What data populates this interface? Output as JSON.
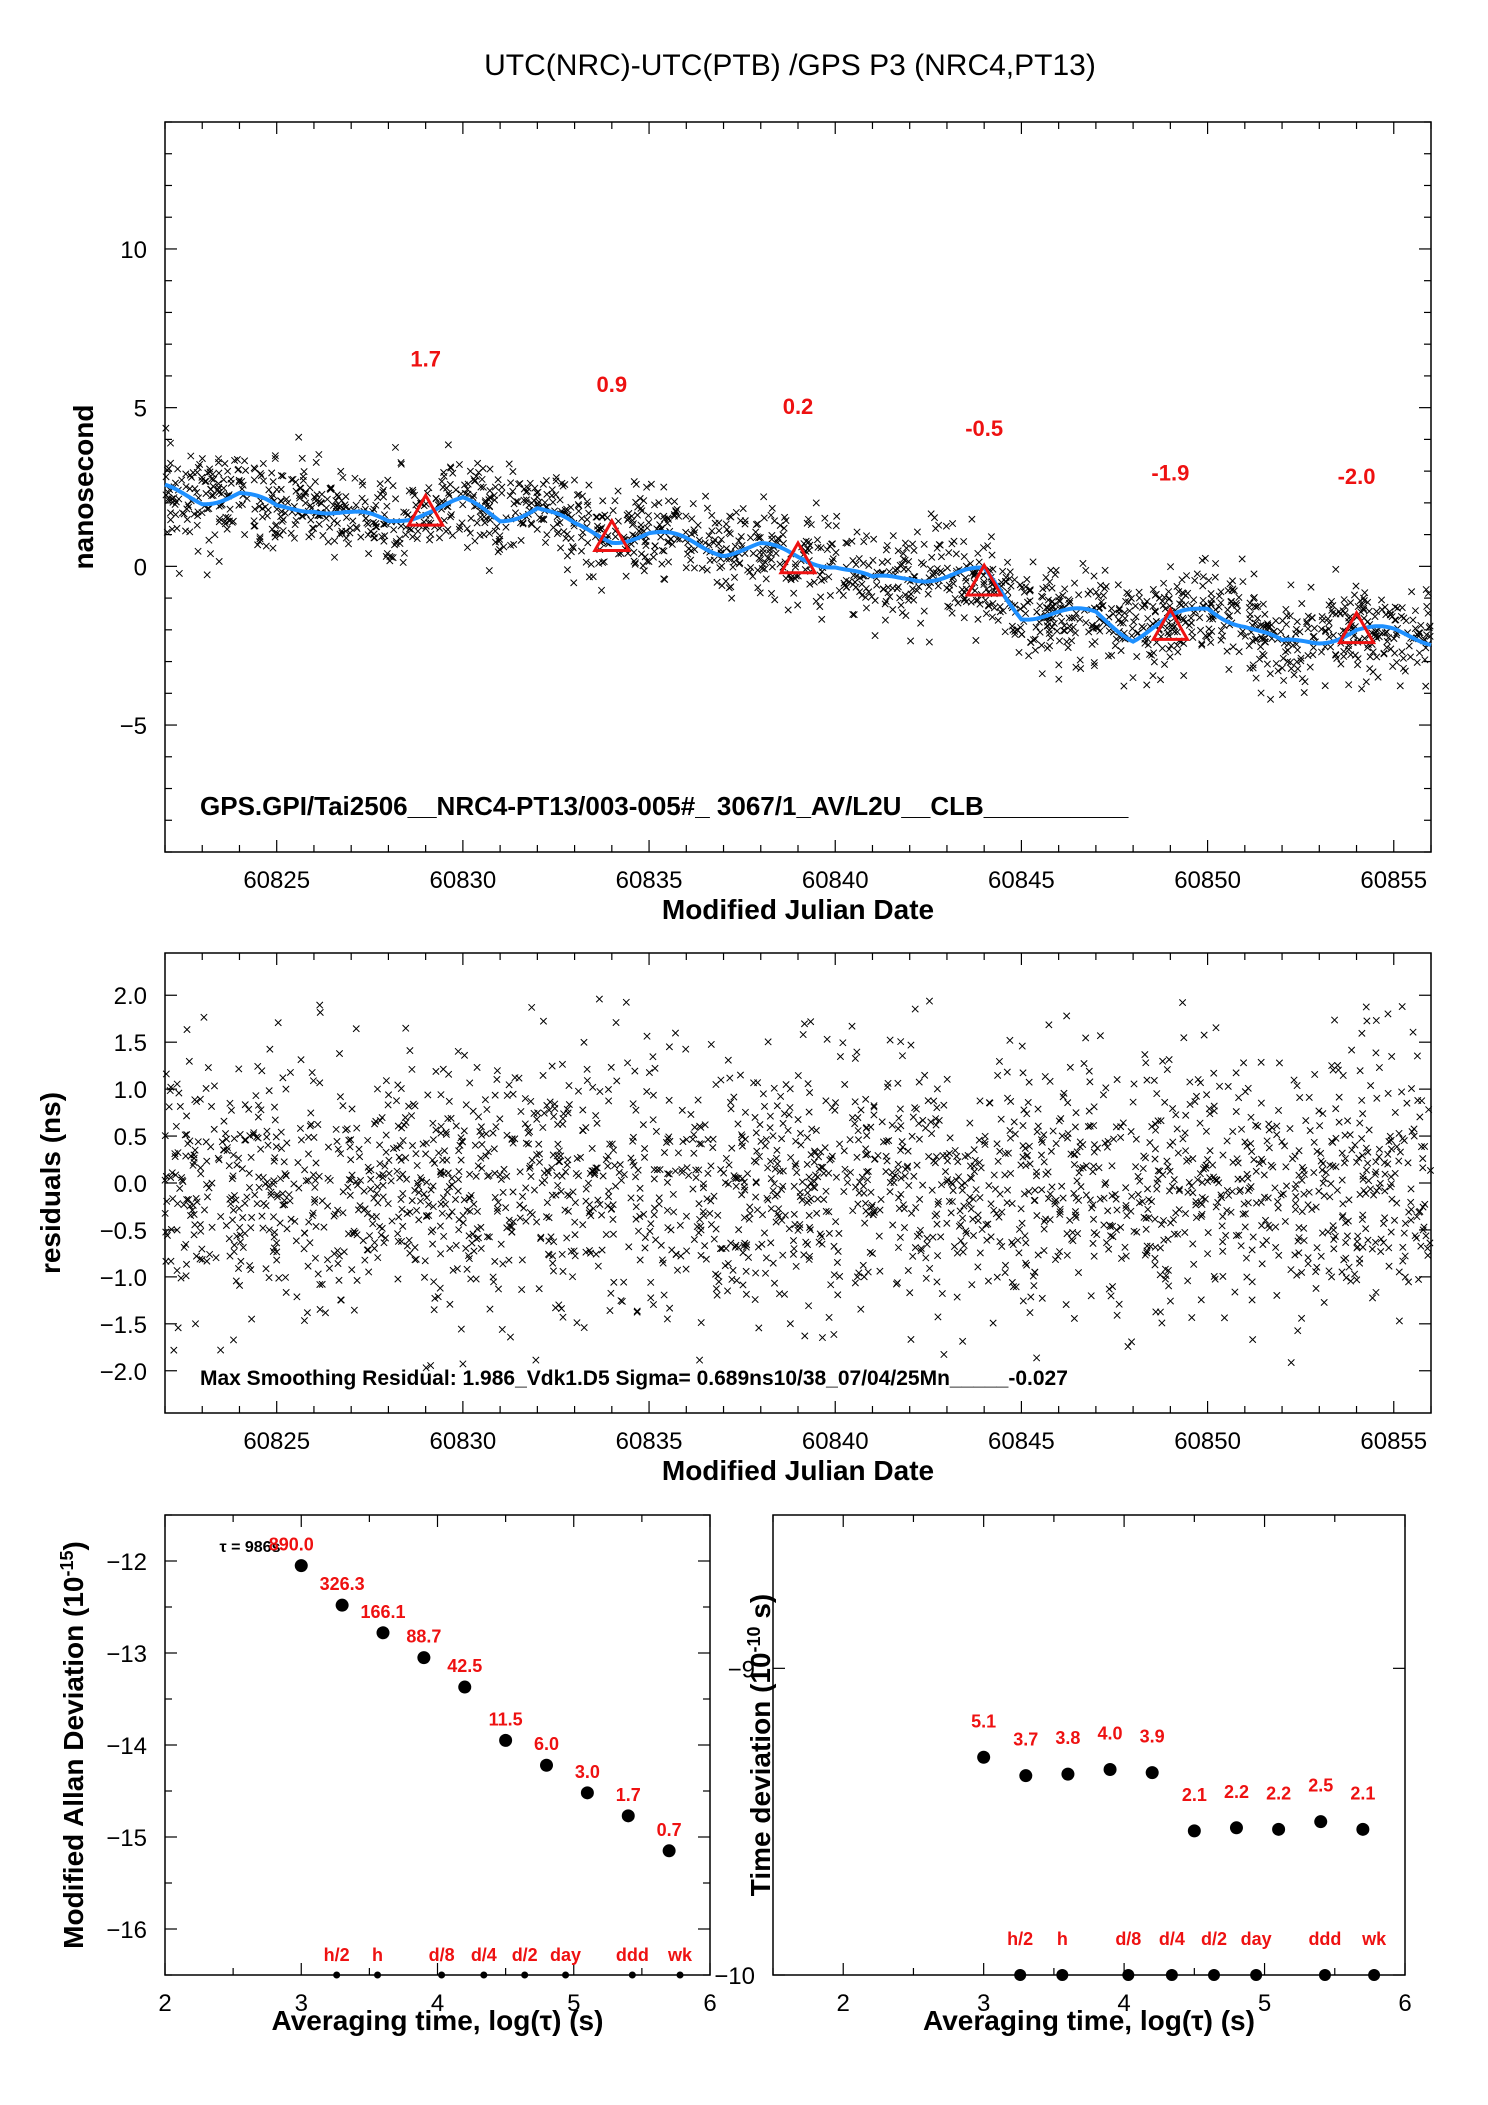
{
  "chart_data": [
    {
      "id": "phase",
      "type": "scatter",
      "title": "UTC(NRC)-UTC(PTB)  /GPS  P3  (NRC4,PT13)",
      "xlabel": "Modified Julian Date",
      "ylabel": "nanosecond",
      "xlim": [
        60822,
        60856
      ],
      "ylim": [
        -9,
        14
      ],
      "xticks": [
        "60825",
        "60830",
        "60835",
        "60840",
        "60845",
        "60850",
        "60855"
      ],
      "yticks": [
        "−5",
        "0",
        "5",
        "10"
      ],
      "series": [
        {
          "marker": "x",
          "color": "#000000",
          "values": "scattered daily-cycle points around the smoothed curve, roughly ±1.5 ns"
        },
        {
          "line": "smoothed",
          "color": "#1e90ff",
          "x": [
            60822,
            60823,
            60824,
            60825,
            60826,
            60827,
            60828,
            60829,
            60830,
            60831,
            60832,
            60833,
            60834,
            60835,
            60836,
            60837,
            60838,
            60839,
            60840,
            60841,
            60842,
            60843,
            60844,
            60845,
            60846,
            60847,
            60848,
            60849,
            60850,
            60851,
            60852,
            60853,
            60854,
            60855,
            60856
          ],
          "y": [
            2.4,
            2.1,
            2.3,
            1.8,
            1.9,
            1.6,
            1.4,
            1.8,
            2.0,
            1.5,
            1.9,
            1.2,
            0.9,
            1.0,
            0.8,
            0.5,
            0.6,
            0.3,
            0.1,
            -0.5,
            -0.3,
            -0.3,
            -0.2,
            -1.5,
            -1.5,
            -1.5,
            -2.2,
            -1.7,
            -1.3,
            -1.8,
            -2.5,
            -2.3,
            -2.0,
            -2.1,
            -2.3
          ]
        },
        {
          "marker": "triangle",
          "color": "#ee1111",
          "x": [
            60829,
            60834,
            60839,
            60844,
            60849,
            60854
          ],
          "y": [
            1.7,
            0.9,
            0.2,
            -0.5,
            -1.9,
            -2.0
          ],
          "labels": [
            "1.7",
            "0.9",
            "0.2",
            "-0.5",
            "-1.9",
            "-2.0"
          ]
        }
      ],
      "annotation": "GPS.GPI/Tai2506__NRC4-PT13/003-005#_  3067/1_AV/L2U__CLB__________"
    },
    {
      "id": "residuals",
      "type": "scatter",
      "xlabel": "Modified Julian Date",
      "ylabel": "residuals (ns)",
      "xlim": [
        60822,
        60856
      ],
      "ylim": [
        -2.45,
        2.45
      ],
      "xticks": [
        "60825",
        "60830",
        "60835",
        "60840",
        "60845",
        "60850",
        "60855"
      ],
      "yticks": [
        "2.0",
        "1.5",
        "1.0",
        "0.5",
        "0.0",
        "−0.5",
        "−1.0",
        "−1.5",
        "−2.0"
      ],
      "series": [
        {
          "marker": "x",
          "color": "#000000",
          "values": "residuals scattered approximately normally about 0 with sigma 0.689 ns"
        }
      ],
      "annotation": "Max Smoothing Residual: 1.986_Vdk1.D5  Sigma= 0.689ns10/38_07/04/25Mn_____-0.027"
    },
    {
      "id": "mdev",
      "type": "scatter",
      "xlabel": "Averaging time, log(τ) (s)",
      "ylabel": "Modified Allan Deviation (10",
      "ylabel_sup": "-15",
      "ylabel_end": ")",
      "xlim": [
        2,
        6
      ],
      "ylim": [
        -16.5,
        -11.5
      ],
      "xticks": [
        "2",
        "3",
        "4",
        "5",
        "6"
      ],
      "yticks": [
        "−12",
        "−13",
        "−14",
        "−15",
        "−16"
      ],
      "tau_note": "τ = 986s",
      "x": [
        3.0,
        3.3,
        3.6,
        3.9,
        4.2,
        4.5,
        4.8,
        5.1,
        5.4,
        5.7
      ],
      "y": [
        -12.05,
        -12.48,
        -12.78,
        -13.05,
        -13.37,
        -13.95,
        -14.22,
        -14.52,
        -14.77,
        -15.15
      ],
      "labels": [
        "890.0",
        "326.3",
        "166.1",
        "88.7",
        "42.5",
        "11.5",
        "6.0",
        "3.0",
        "1.7",
        "0.7"
      ],
      "markers": {
        "x": [
          3.26,
          3.56,
          4.03,
          4.34,
          4.64,
          4.94,
          5.43,
          5.78
        ],
        "labels": [
          "h/2",
          "h",
          "d/8",
          "d/4",
          "d/2",
          "day",
          "ddd",
          "wk"
        ]
      }
    },
    {
      "id": "tdev",
      "type": "scatter",
      "xlabel": "Averaging time, log(τ) (s)",
      "ylabel": "Time deviation (10",
      "ylabel_sup": "-10",
      "ylabel_end": " s)",
      "xlim": [
        1.5,
        6.0
      ],
      "ylim": [
        -10.0,
        -8.5
      ],
      "xticks": [
        "2",
        "3",
        "4",
        "5",
        "6"
      ],
      "xtick_values": [
        2,
        3,
        4,
        5,
        6
      ],
      "yticks": [
        "−9",
        "−10"
      ],
      "ytick_values": [
        -9,
        -10
      ],
      "x": [
        3.0,
        3.3,
        3.6,
        3.9,
        4.2,
        4.5,
        4.8,
        5.1,
        5.4,
        5.7
      ],
      "y": [
        -9.29,
        -9.35,
        -9.345,
        -9.33,
        -9.34,
        -9.53,
        -9.52,
        -9.525,
        -9.5,
        -9.525
      ],
      "labels": [
        "5.1",
        "3.7",
        "3.8",
        "4.0",
        "3.9",
        "2.1",
        "2.2",
        "2.2",
        "2.5",
        "2.1"
      ],
      "markers": {
        "x": [
          3.26,
          3.56,
          4.03,
          4.34,
          4.64,
          4.94,
          5.43,
          5.78
        ],
        "labels": [
          "h/2",
          "h",
          "d/8",
          "d/4",
          "d/2",
          "day",
          "ddd",
          "wk"
        ]
      }
    }
  ]
}
